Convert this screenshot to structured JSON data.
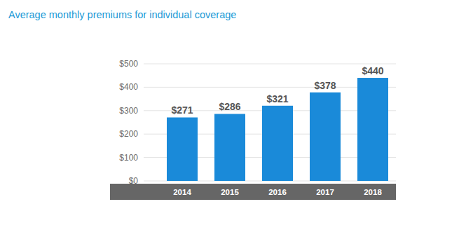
{
  "chart_data": {
    "type": "bar",
    "title": "Average monthly premiums for individual coverage",
    "categories": [
      "2014",
      "2015",
      "2016",
      "2017",
      "2018"
    ],
    "values": [
      271,
      286,
      321,
      378,
      440
    ],
    "value_labels": [
      "$271",
      "$286",
      "$321",
      "$378",
      "$440"
    ],
    "color": "#1a8ad9",
    "ylim": [
      0,
      500
    ],
    "yticks": [
      {
        "value": 0,
        "label": "$0"
      },
      {
        "value": 100,
        "label": "$100"
      },
      {
        "value": 200,
        "label": "$200"
      },
      {
        "value": 300,
        "label": "$300"
      },
      {
        "value": 400,
        "label": "$400"
      },
      {
        "value": 500,
        "label": "$500"
      }
    ],
    "grid": true,
    "data_labels": true
  }
}
